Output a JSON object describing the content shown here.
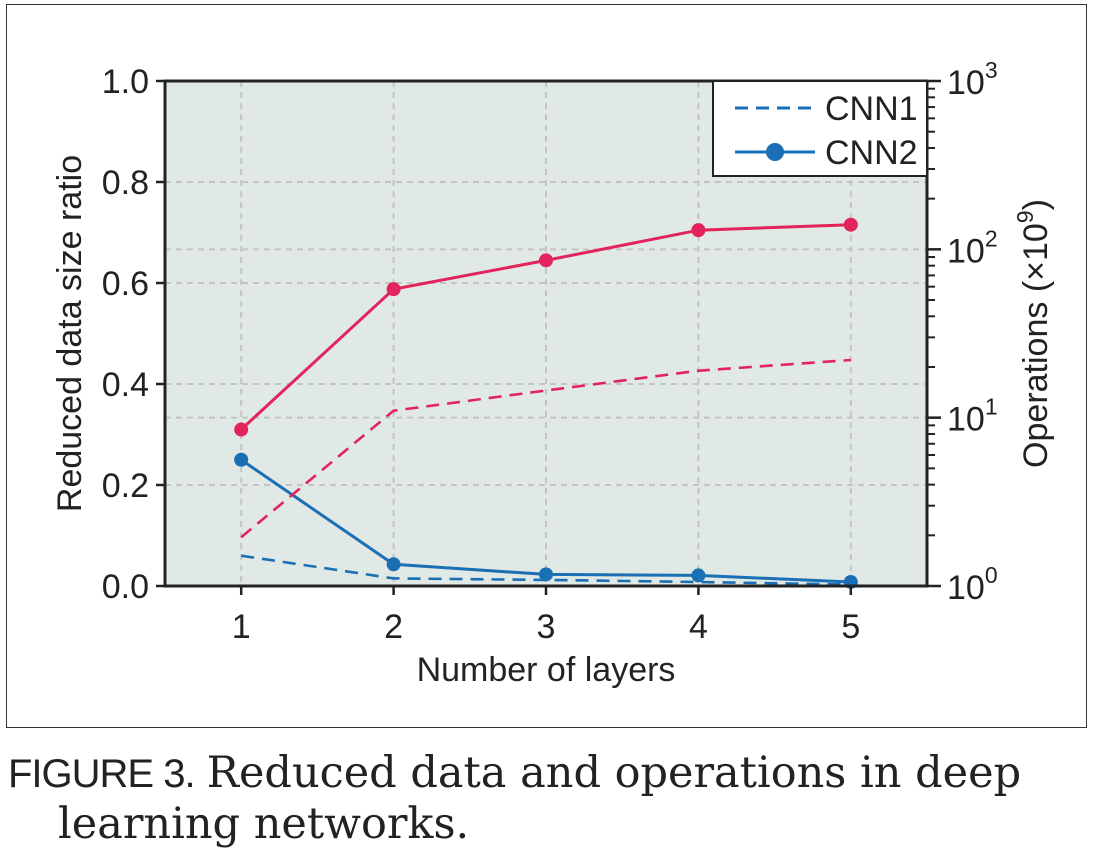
{
  "chart_data": {
    "type": "line",
    "xlabel": "Number of layers",
    "ylabel_left": "Reduced data size ratio",
    "ylabel_right": "Operations (×10",
    "ylabel_right_exp": "9",
    "x": [
      1,
      2,
      3,
      4,
      5
    ],
    "xlim": [
      0.5,
      5.5
    ],
    "ylim_left": [
      0,
      1
    ],
    "ylim_right": [
      1,
      1000
    ],
    "right_scale": "log",
    "x_ticks": [
      "1",
      "2",
      "3",
      "4",
      "5"
    ],
    "y_ticks_left": [
      "0.0",
      "0.2",
      "0.4",
      "0.6",
      "0.8",
      "1.0"
    ],
    "y_ticks_right": [
      {
        "base": "10",
        "exp": "0"
      },
      {
        "base": "10",
        "exp": "1"
      },
      {
        "base": "10",
        "exp": "2"
      },
      {
        "base": "10",
        "exp": "3"
      }
    ],
    "grid": true,
    "legend_position": "top-right",
    "legend": [
      {
        "name": "CNN1",
        "style": "dashed"
      },
      {
        "name": "CNN2",
        "style": "solid-marker"
      }
    ],
    "series": [
      {
        "name": "CNN1",
        "axis": "left",
        "metric": "data",
        "style": "dashed",
        "color": "#1a6fb5",
        "values": [
          0.06,
          0.015,
          0.012,
          0.008,
          0.003
        ]
      },
      {
        "name": "CNN2",
        "axis": "left",
        "metric": "data",
        "style": "solid-marker",
        "color": "#1a6fb5",
        "values": [
          0.25,
          0.043,
          0.023,
          0.021,
          0.008
        ]
      },
      {
        "name": "CNN1",
        "axis": "right",
        "metric": "operations",
        "style": "dashed",
        "color": "#e2245d",
        "values": [
          1.95,
          11.0,
          14.5,
          19.0,
          22.0
        ]
      },
      {
        "name": "CNN2",
        "axis": "right",
        "metric": "operations",
        "style": "solid-marker",
        "color": "#e2245d",
        "values": [
          8.5,
          58,
          86,
          130,
          140
        ]
      }
    ],
    "colors": {
      "plot_bg": "#e0e9e5",
      "grid": "#c4c4c4",
      "axis": "#222222"
    }
  },
  "caption": {
    "label": "FIGURE 3.",
    "line1": "Reduced data and operations in deep",
    "line2": "learning networks."
  }
}
